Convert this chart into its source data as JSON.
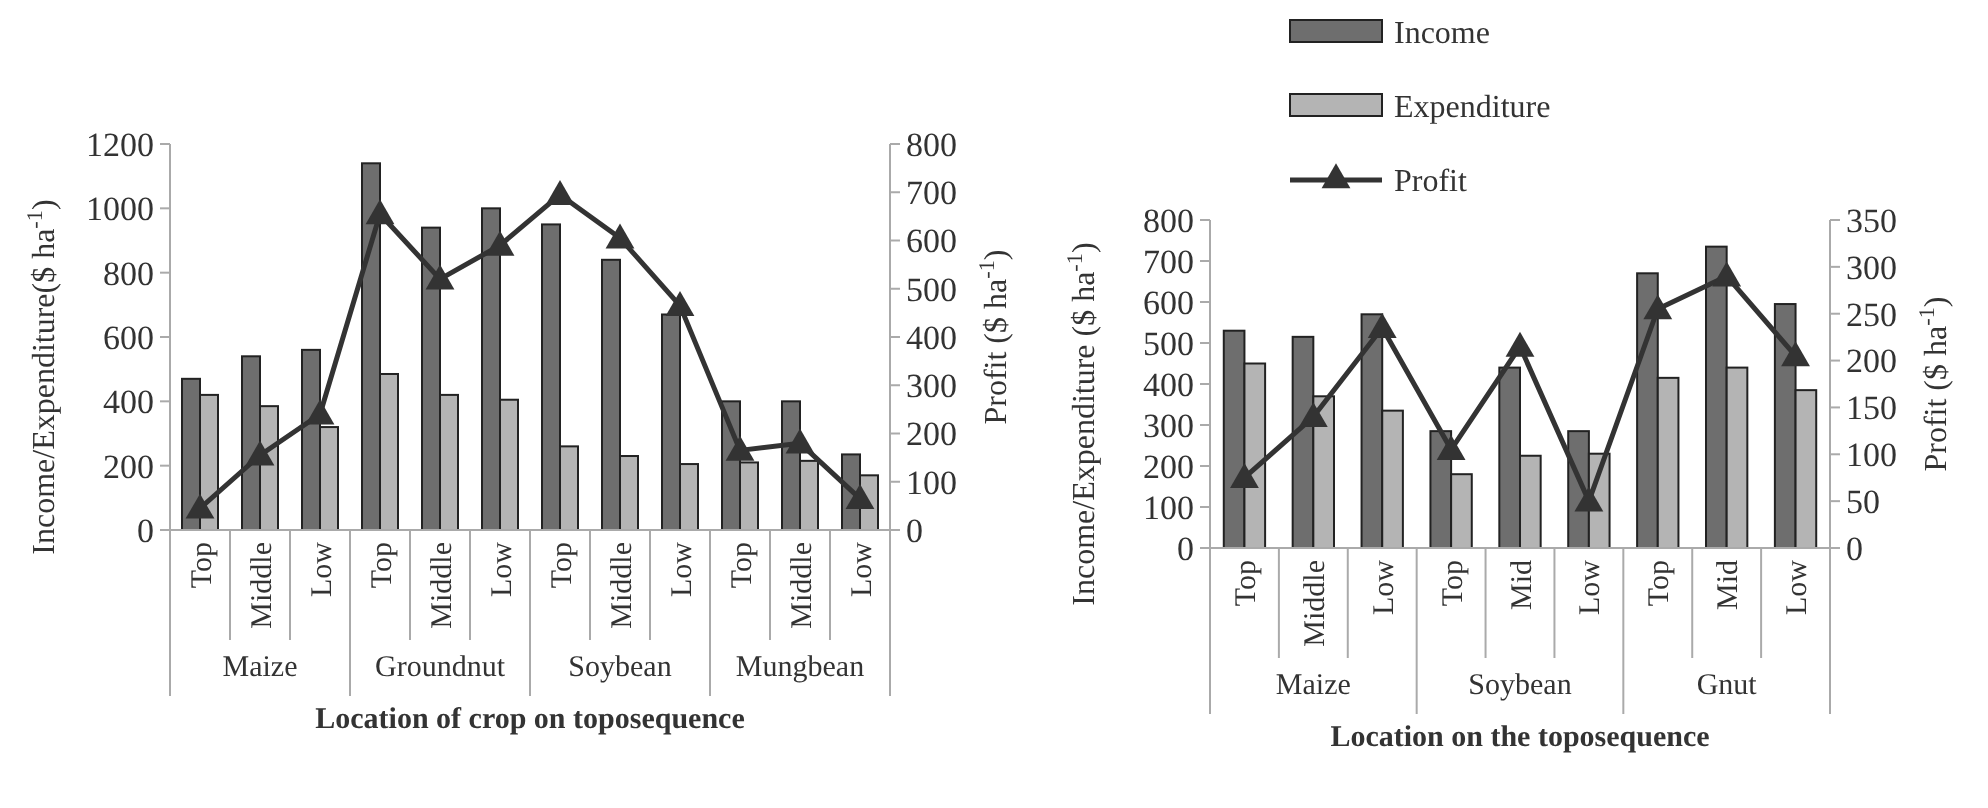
{
  "chart_data": [
    {
      "type": "bar",
      "categories": [
        "Top",
        "Middle",
        "Low",
        "Top",
        "Middle",
        "Low",
        "Top",
        "Middle",
        "Low",
        "Top",
        "Middle",
        "Low"
      ],
      "series": [
        {
          "color": "#6e6e6e",
          "values": [
            470,
            540,
            560,
            1140,
            940,
            1000,
            950,
            840,
            670,
            400,
            400,
            235
          ]
        },
        {
          "color": "#b4b4b4",
          "values": [
            420,
            385,
            320,
            485,
            420,
            405,
            260,
            230,
            205,
            210,
            215,
            170
          ]
        },
        {
          "type": "line",
          "axis": "y2",
          "color": "#333333",
          "values": [
            45,
            155,
            240,
            655,
            520,
            590,
            695,
            605,
            465,
            165,
            180,
            65
          ]
        }
      ],
      "ylim": [
        0,
        1200
      ],
      "yticks": [
        0,
        200,
        400,
        600,
        800,
        1000,
        1200
      ],
      "y2lim": [
        0,
        800
      ],
      "y2ticks": [
        0,
        100,
        200,
        300,
        400,
        500,
        600,
        700,
        800
      ],
      "ylabel": "Income/Expenditure($ ha$^{-1}$)",
      "y2label": "Profit ($ ha$^{-1}$)",
      "xlabel": "Location of crop on toposequence",
      "annotations": [
        "Maize",
        "Groundnut",
        "Soybean",
        "Mungbean"
      ],
      "marker": "triangle",
      "legend": false
    },
    {
      "type": "bar",
      "categories": [
        "Top",
        "Middle",
        "Low",
        "Top",
        "Mid",
        "Low",
        "Top",
        "Mid",
        "Low"
      ],
      "series": [
        {
          "name": "Income",
          "color": "#6e6e6e",
          "values": [
            530,
            515,
            570,
            285,
            440,
            285,
            670,
            735,
            595
          ]
        },
        {
          "name": "Expenditure",
          "color": "#b4b4b4",
          "values": [
            450,
            370,
            335,
            180,
            225,
            230,
            415,
            440,
            385
          ]
        },
        {
          "name": "Profit",
          "type": "line",
          "axis": "y2",
          "color": "#333333",
          "values": [
            75,
            140,
            235,
            105,
            215,
            50,
            255,
            290,
            205
          ]
        }
      ],
      "ylim": [
        0,
        800
      ],
      "yticks": [
        0,
        100,
        200,
        300,
        400,
        500,
        600,
        700,
        800
      ],
      "y2lim": [
        0,
        350
      ],
      "y2ticks": [
        0,
        50,
        100,
        150,
        200,
        250,
        300,
        350
      ],
      "ylabel": "Income/Expenditure ($ ha$^{-1}$)",
      "y2label": "Profit ($ ha$^{-1}$)",
      "xlabel": "Location on the toposequence",
      "annotations": [
        "Maize",
        "Soybean",
        "Gnut"
      ],
      "marker": "triangle",
      "legend": "top"
    }
  ]
}
